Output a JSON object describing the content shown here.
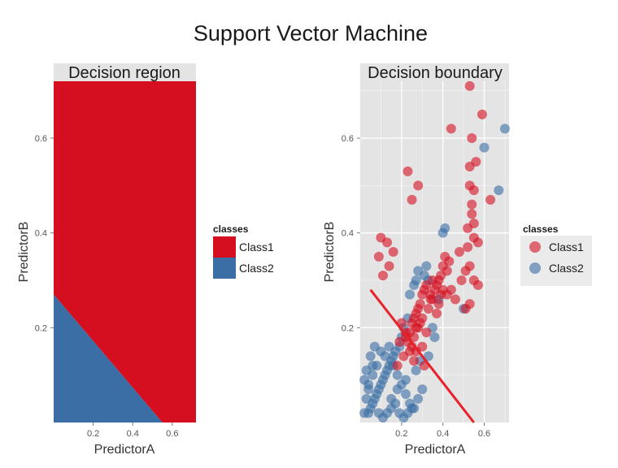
{
  "figure": {
    "title": "Support Vector Machine"
  },
  "colors": {
    "class1": "#d50f1f",
    "class2": "#3a6ea5",
    "panel_bg": "#e4e4e4",
    "grid": "#f5f5f5",
    "boundary": "#e8212b"
  },
  "chart_data": [
    {
      "type": "area",
      "title": "Decision region",
      "xlabel": "PredictorA",
      "ylabel": "PredictorB",
      "xlim": [
        0.0,
        0.72
      ],
      "ylim": [
        0.0,
        0.72
      ],
      "xticks": [
        {
          "v": 0.2,
          "label": "0.2"
        },
        {
          "v": 0.4,
          "label": "0.4"
        },
        {
          "v": 0.6,
          "label": "0.6"
        }
      ],
      "yticks": [
        {
          "v": 0.2,
          "label": "0.2"
        },
        {
          "v": 0.4,
          "label": "0.4"
        },
        {
          "v": 0.6,
          "label": "0.6"
        }
      ],
      "regions": [
        {
          "class": "Class1",
          "polygon": [
            [
              0.0,
              0.72
            ],
            [
              0.72,
              0.72
            ],
            [
              0.72,
              0.0
            ],
            [
              0.55,
              0.0
            ],
            [
              0.0,
              0.27
            ]
          ]
        },
        {
          "class": "Class2",
          "polygon": [
            [
              0.0,
              0.0
            ],
            [
              0.55,
              0.0
            ],
            [
              0.0,
              0.27
            ]
          ]
        }
      ],
      "legend": {
        "title": "classes",
        "position": "right",
        "entries": [
          {
            "label": "Class1",
            "class": "class1"
          },
          {
            "label": "Class2",
            "class": "class2"
          }
        ]
      }
    },
    {
      "type": "scatter",
      "title": "Decision boundary",
      "xlabel": "PredictorA",
      "ylabel": "PredictorB",
      "xlim": [
        0.0,
        0.72
      ],
      "ylim": [
        0.0,
        0.72
      ],
      "xticks": [
        {
          "v": 0.2,
          "label": "0.2"
        },
        {
          "v": 0.4,
          "label": "0.4"
        },
        {
          "v": 0.6,
          "label": "0.6"
        }
      ],
      "yticks": [
        {
          "v": 0.2,
          "label": "0.2"
        },
        {
          "v": 0.4,
          "label": "0.4"
        },
        {
          "v": 0.6,
          "label": "0.6"
        }
      ],
      "boundary": {
        "x": [
          0.05,
          0.55
        ],
        "y": [
          0.28,
          0.0
        ]
      },
      "series": [
        {
          "name": "Class1",
          "class": "class1",
          "x": [
            0.53,
            0.59,
            0.44,
            0.54,
            0.56,
            0.53,
            0.53,
            0.55,
            0.63,
            0.54,
            0.54,
            0.55,
            0.52,
            0.57,
            0.55,
            0.48,
            0.52,
            0.53,
            0.51,
            0.55,
            0.43,
            0.49,
            0.44,
            0.42,
            0.46,
            0.57,
            0.53,
            0.51,
            0.41,
            0.4,
            0.42,
            0.39,
            0.38,
            0.37,
            0.4,
            0.39,
            0.36,
            0.35,
            0.38,
            0.34,
            0.33,
            0.37,
            0.35,
            0.32,
            0.31,
            0.3,
            0.34,
            0.29,
            0.28,
            0.27,
            0.3,
            0.29,
            0.26,
            0.28,
            0.25,
            0.24,
            0.27,
            0.26,
            0.23,
            0.22,
            0.25,
            0.2,
            0.22,
            0.19,
            0.24,
            0.21,
            0.18,
            0.16,
            0.13,
            0.1,
            0.09,
            0.14,
            0.11,
            0.25,
            0.23,
            0.28,
            0.32,
            0.3,
            0.27,
            0.26,
            0.31
          ],
          "y": [
            0.71,
            0.65,
            0.62,
            0.6,
            0.55,
            0.54,
            0.5,
            0.49,
            0.47,
            0.46,
            0.44,
            0.42,
            0.41,
            0.38,
            0.39,
            0.36,
            0.37,
            0.33,
            0.32,
            0.3,
            0.34,
            0.3,
            0.28,
            0.27,
            0.26,
            0.29,
            0.25,
            0.24,
            0.35,
            0.33,
            0.32,
            0.31,
            0.3,
            0.29,
            0.28,
            0.27,
            0.28,
            0.26,
            0.25,
            0.27,
            0.24,
            0.23,
            0.3,
            0.29,
            0.28,
            0.27,
            0.26,
            0.25,
            0.24,
            0.23,
            0.22,
            0.21,
            0.22,
            0.2,
            0.21,
            0.19,
            0.2,
            0.18,
            0.17,
            0.19,
            0.16,
            0.21,
            0.18,
            0.17,
            0.15,
            0.14,
            0.12,
            0.36,
            0.38,
            0.39,
            0.35,
            0.33,
            0.31,
            0.47,
            0.53,
            0.5,
            0.19,
            0.16,
            0.15,
            0.13,
            0.12
          ]
        },
        {
          "name": "Class2",
          "class": "class2",
          "x": [
            0.7,
            0.6,
            0.67,
            0.4,
            0.41,
            0.5,
            0.35,
            0.33,
            0.32,
            0.31,
            0.28,
            0.27,
            0.26,
            0.24,
            0.23,
            0.21,
            0.2,
            0.19,
            0.17,
            0.16,
            0.15,
            0.14,
            0.13,
            0.12,
            0.11,
            0.1,
            0.09,
            0.08,
            0.07,
            0.06,
            0.05,
            0.04,
            0.03,
            0.02,
            0.12,
            0.14,
            0.16,
            0.18,
            0.2,
            0.22,
            0.24,
            0.26,
            0.28,
            0.3,
            0.1,
            0.08,
            0.06,
            0.04,
            0.09,
            0.11,
            0.13,
            0.15,
            0.17,
            0.19,
            0.21,
            0.23,
            0.25,
            0.05,
            0.07,
            0.03,
            0.15,
            0.18,
            0.22,
            0.27,
            0.36,
            0.38,
            0.33,
            0.29,
            0.02,
            0.04,
            0.06
          ],
          "y": [
            0.62,
            0.58,
            0.49,
            0.4,
            0.41,
            0.24,
            0.2,
            0.3,
            0.33,
            0.31,
            0.32,
            0.3,
            0.29,
            0.27,
            0.22,
            0.2,
            0.18,
            0.16,
            0.15,
            0.14,
            0.13,
            0.12,
            0.11,
            0.1,
            0.09,
            0.08,
            0.07,
            0.06,
            0.05,
            0.04,
            0.03,
            0.02,
            0.05,
            0.09,
            0.14,
            0.16,
            0.12,
            0.1,
            0.08,
            0.06,
            0.04,
            0.03,
            0.05,
            0.07,
            0.15,
            0.12,
            0.1,
            0.08,
            0.02,
            0.01,
            0.02,
            0.03,
            0.04,
            0.02,
            0.01,
            0.02,
            0.03,
            0.14,
            0.16,
            0.11,
            0.05,
            0.07,
            0.09,
            0.11,
            0.18,
            0.26,
            0.14,
            0.13,
            0.02,
            0.07,
            0.12
          ]
        }
      ],
      "legend": {
        "title": "classes",
        "position": "right",
        "entries": [
          {
            "label": "Class1",
            "class": "class1"
          },
          {
            "label": "Class2",
            "class": "class2"
          }
        ]
      }
    }
  ]
}
